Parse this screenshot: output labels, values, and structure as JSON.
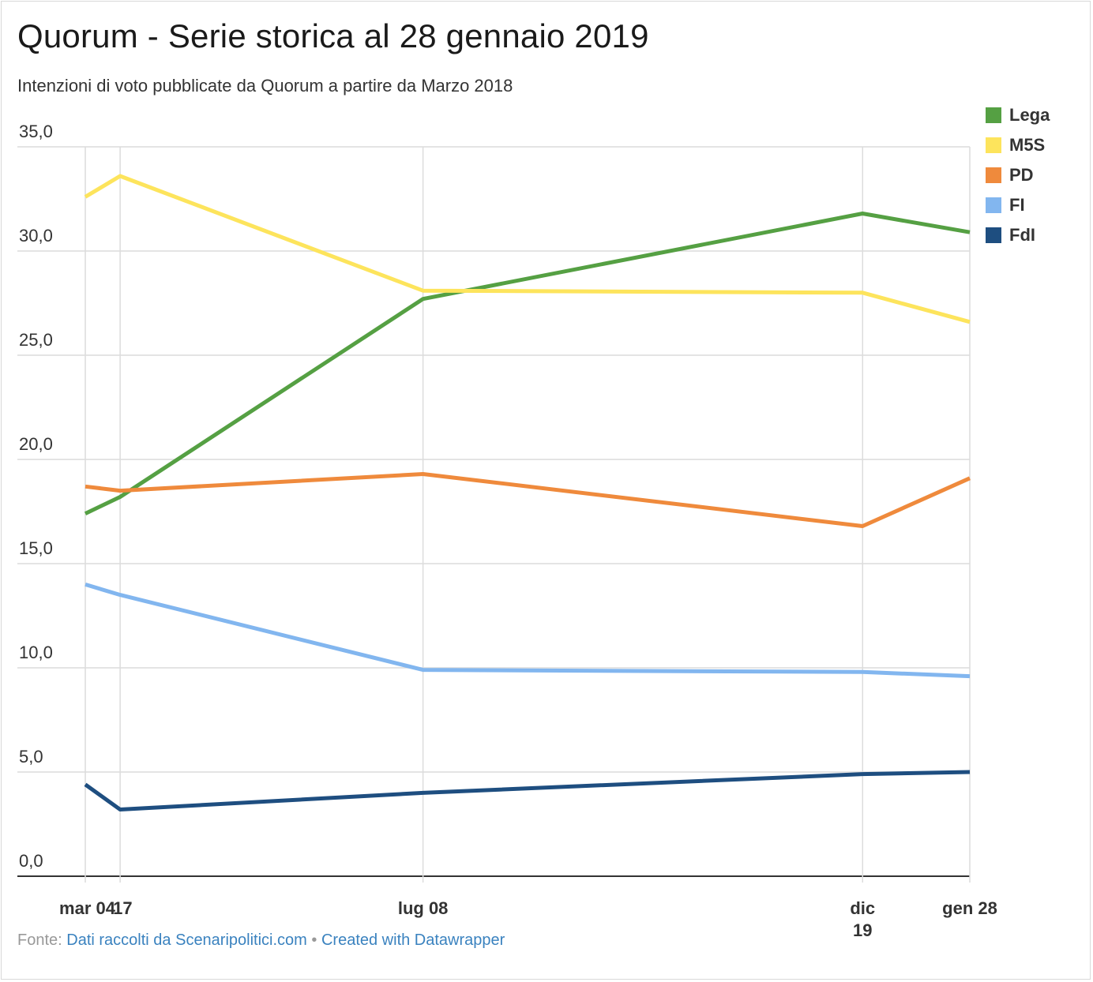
{
  "title": "Quorum - Serie storica al 28 gennaio 2019",
  "subtitle": "Intenzioni di voto pubblicate da Quorum a partire da Marzo 2018",
  "footer": {
    "prefix": "Fonte:",
    "source_link": "Dati raccolti da Scenaripolitici.com",
    "separator": "•",
    "credit_link": "Created with Datawrapper"
  },
  "chart_data": {
    "type": "line",
    "x": [
      "2018-03-04",
      "2018-03-17",
      "2018-07-08",
      "2018-12-19",
      "2019-01-28"
    ],
    "x_tick_labels": [
      {
        "date": "2018-03-04",
        "lines": [
          "mar 04"
        ]
      },
      {
        "date": "2018-03-17",
        "lines": [
          "17"
        ]
      },
      {
        "date": "2018-07-08",
        "lines": [
          "lug 08"
        ]
      },
      {
        "date": "2018-12-19",
        "lines": [
          "dic",
          "19"
        ]
      },
      {
        "date": "2019-01-28",
        "lines": [
          "gen 28"
        ]
      }
    ],
    "y_ticks": [
      "0,0",
      "5,0",
      "10,0",
      "15,0",
      "20,0",
      "25,0",
      "30,0",
      "35,0"
    ],
    "ylim": [
      0,
      35
    ],
    "grid": true,
    "legend_position": "top-right",
    "series": [
      {
        "name": "Lega",
        "color": "#55a043",
        "values": [
          17.4,
          18.2,
          27.7,
          31.8,
          30.9
        ]
      },
      {
        "name": "M5S",
        "color": "#fde45c",
        "values": [
          32.6,
          33.6,
          28.1,
          28.0,
          26.6
        ]
      },
      {
        "name": "PD",
        "color": "#ef8a3c",
        "values": [
          18.7,
          18.5,
          19.3,
          16.8,
          19.1
        ]
      },
      {
        "name": "FI",
        "color": "#82b6ef",
        "values": [
          14.0,
          13.5,
          9.9,
          9.8,
          9.6
        ]
      },
      {
        "name": "FdI",
        "color": "#1e4e80",
        "values": [
          4.4,
          3.2,
          4.0,
          4.9,
          5.0
        ]
      }
    ]
  }
}
